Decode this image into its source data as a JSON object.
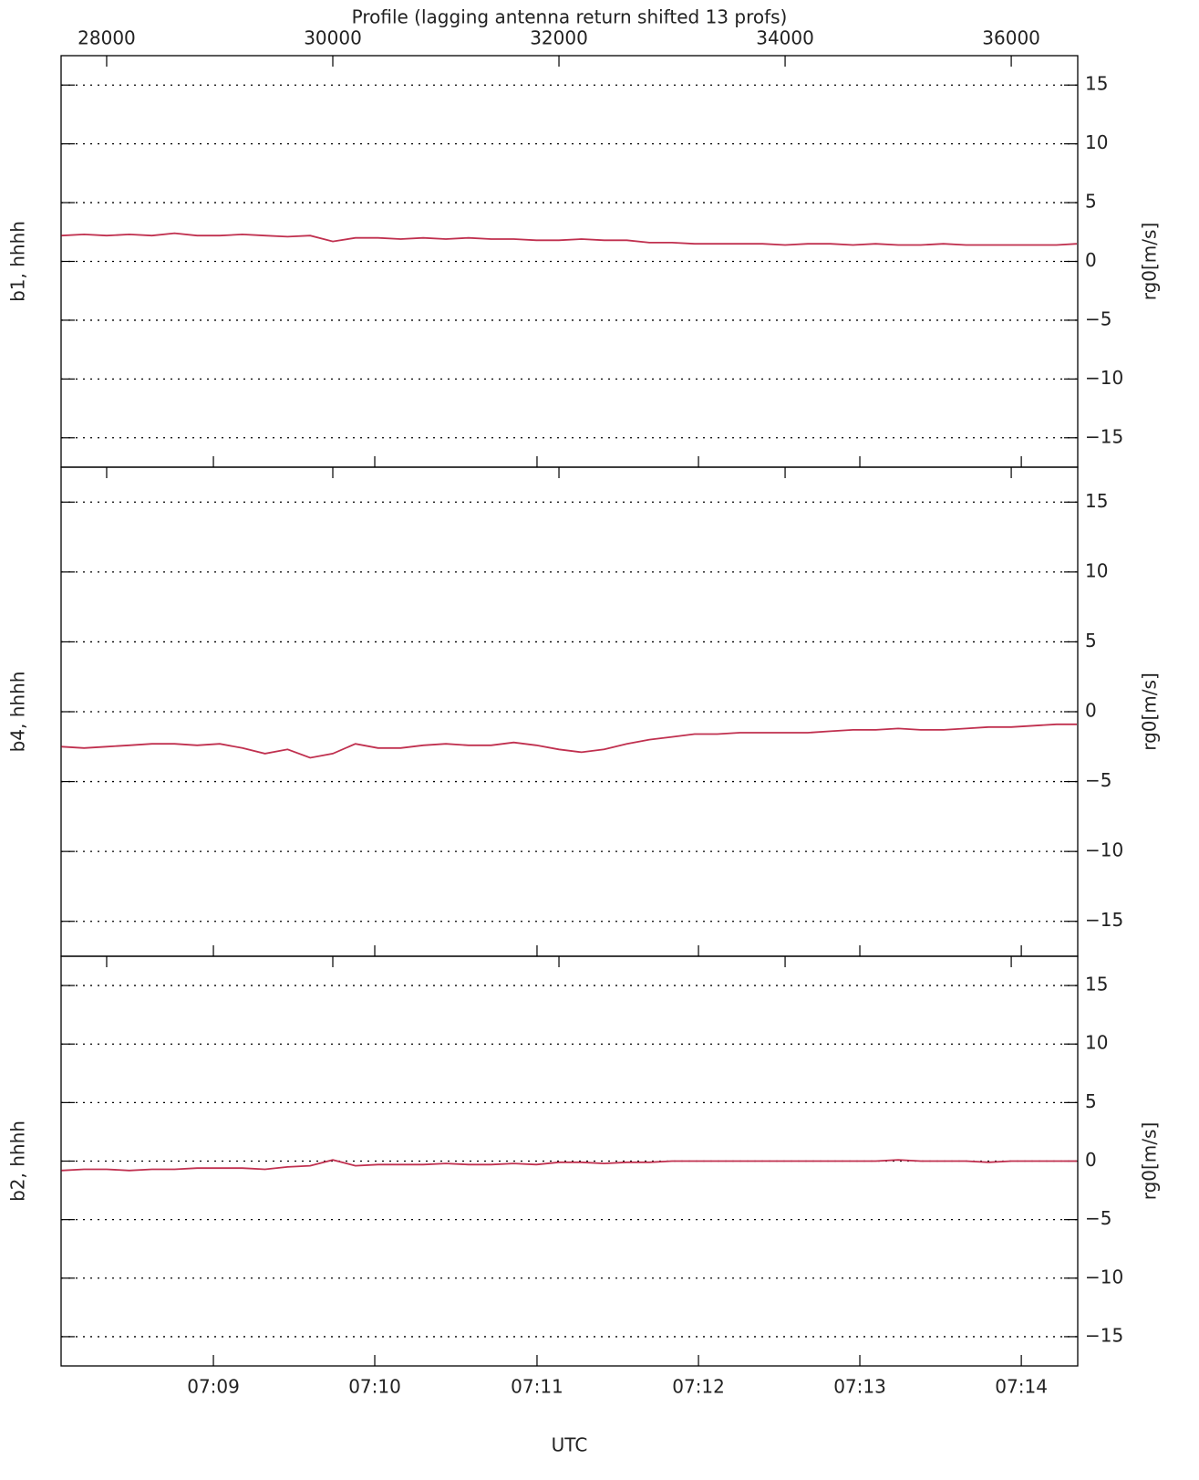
{
  "chart_data": [
    {
      "type": "line",
      "xlabel": "Profile (lagging antenna return shifted 13 profs)",
      "ylabel": "b1, hhhh",
      "y2label": "rg0[m/s]",
      "x": [
        27600,
        27800,
        28000,
        28200,
        28400,
        28600,
        28800,
        29000,
        29200,
        29400,
        29600,
        29800,
        30000,
        30200,
        30400,
        30600,
        30800,
        31000,
        31200,
        31400,
        31600,
        31800,
        32000,
        32200,
        32400,
        32600,
        32800,
        33000,
        33200,
        33400,
        33600,
        33800,
        34000,
        34200,
        34400,
        34600,
        34800,
        35000,
        35200,
        35400,
        35600,
        35800,
        36000,
        36200,
        36400,
        36580
      ],
      "series": [
        {
          "color": "#c0304f",
          "values": [
            2.2,
            2.3,
            2.2,
            2.3,
            2.2,
            2.4,
            2.2,
            2.2,
            2.3,
            2.2,
            2.1,
            2.2,
            1.7,
            2.0,
            2.0,
            1.9,
            2.0,
            1.9,
            2.0,
            1.9,
            1.9,
            1.8,
            1.8,
            1.9,
            1.8,
            1.8,
            1.6,
            1.6,
            1.5,
            1.5,
            1.5,
            1.5,
            1.4,
            1.5,
            1.5,
            1.4,
            1.5,
            1.4,
            1.4,
            1.5,
            1.4,
            1.4,
            1.4,
            1.4,
            1.4,
            1.5
          ]
        }
      ],
      "xlim": [
        27597,
        36588
      ],
      "xticks": [
        28000,
        30000,
        32000,
        34000,
        36000
      ],
      "ylim": [
        -17.5,
        17.5
      ],
      "yticks": [
        {
          "value": -15,
          "label": "−15"
        },
        {
          "value": -10,
          "label": "−10"
        },
        {
          "value": -5,
          "label": "−5"
        },
        0,
        5,
        10,
        15
      ],
      "grid": true
    },
    {
      "type": "line",
      "ylabel": "b4, hhhh",
      "y2label": "rg0[m/s]",
      "x": [
        27600,
        27800,
        28000,
        28200,
        28400,
        28600,
        28800,
        29000,
        29200,
        29400,
        29600,
        29800,
        30000,
        30200,
        30400,
        30600,
        30800,
        31000,
        31200,
        31400,
        31600,
        31800,
        32000,
        32200,
        32400,
        32600,
        32800,
        33000,
        33200,
        33400,
        33600,
        33800,
        34000,
        34200,
        34400,
        34600,
        34800,
        35000,
        35200,
        35400,
        35600,
        35800,
        36000,
        36200,
        36400,
        36580
      ],
      "series": [
        {
          "color": "#c0304f",
          "values": [
            -2.5,
            -2.6,
            -2.5,
            -2.4,
            -2.3,
            -2.3,
            -2.4,
            -2.3,
            -2.6,
            -3.0,
            -2.7,
            -3.3,
            -3.0,
            -2.3,
            -2.6,
            -2.6,
            -2.4,
            -2.3,
            -2.4,
            -2.4,
            -2.2,
            -2.4,
            -2.7,
            -2.9,
            -2.7,
            -2.3,
            -2.0,
            -1.8,
            -1.6,
            -1.6,
            -1.5,
            -1.5,
            -1.5,
            -1.5,
            -1.4,
            -1.3,
            -1.3,
            -1.2,
            -1.3,
            -1.3,
            -1.2,
            -1.1,
            -1.1,
            -1.0,
            -0.9,
            -0.9
          ]
        }
      ],
      "xlim": [
        27597,
        36588
      ],
      "ylim": [
        -17.5,
        17.5
      ],
      "yticks": [
        {
          "value": -15,
          "label": "−15"
        },
        {
          "value": -10,
          "label": "−10"
        },
        {
          "value": -5,
          "label": "−5"
        },
        0,
        5,
        10,
        15
      ],
      "grid": true
    },
    {
      "type": "line",
      "xlabel": "UTC",
      "ylabel": "b2, hhhh",
      "y2label": "rg0[m/s]",
      "x": [
        27600,
        27800,
        28000,
        28200,
        28400,
        28600,
        28800,
        29000,
        29200,
        29400,
        29600,
        29800,
        30000,
        30200,
        30400,
        30600,
        30800,
        31000,
        31200,
        31400,
        31600,
        31800,
        32000,
        32200,
        32400,
        32600,
        32800,
        33000,
        33200,
        33400,
        33600,
        33800,
        34000,
        34200,
        34400,
        34600,
        34800,
        35000,
        35200,
        35400,
        35600,
        35800,
        36000,
        36200,
        36400,
        36580
      ],
      "series": [
        {
          "color": "#c0304f",
          "values": [
            -0.8,
            -0.7,
            -0.7,
            -0.8,
            -0.7,
            -0.7,
            -0.6,
            -0.6,
            -0.6,
            -0.7,
            -0.5,
            -0.4,
            0.1,
            -0.4,
            -0.3,
            -0.3,
            -0.3,
            -0.2,
            -0.3,
            -0.3,
            -0.2,
            -0.3,
            -0.1,
            -0.1,
            -0.2,
            -0.1,
            -0.1,
            0,
            0,
            0,
            0,
            0,
            0,
            0,
            0,
            0,
            0,
            0.1,
            0,
            0,
            0,
            -0.1,
            0,
            0,
            0,
            0
          ]
        }
      ],
      "xlim": [
        27597,
        36588
      ],
      "xticks": [
        {
          "value": 28944,
          "label": "07:09"
        },
        {
          "value": 30371,
          "label": "07:10"
        },
        {
          "value": 31806,
          "label": "07:11"
        },
        {
          "value": 33234,
          "label": "07:12"
        },
        {
          "value": 34661,
          "label": "07:13"
        },
        {
          "value": 36089,
          "label": "07:14"
        }
      ],
      "ylim": [
        -17.5,
        17.5
      ],
      "yticks": [
        {
          "value": -15,
          "label": "−15"
        },
        {
          "value": -10,
          "label": "−10"
        },
        {
          "value": -5,
          "label": "−5"
        },
        0,
        5,
        10,
        15
      ],
      "grid": true
    }
  ]
}
